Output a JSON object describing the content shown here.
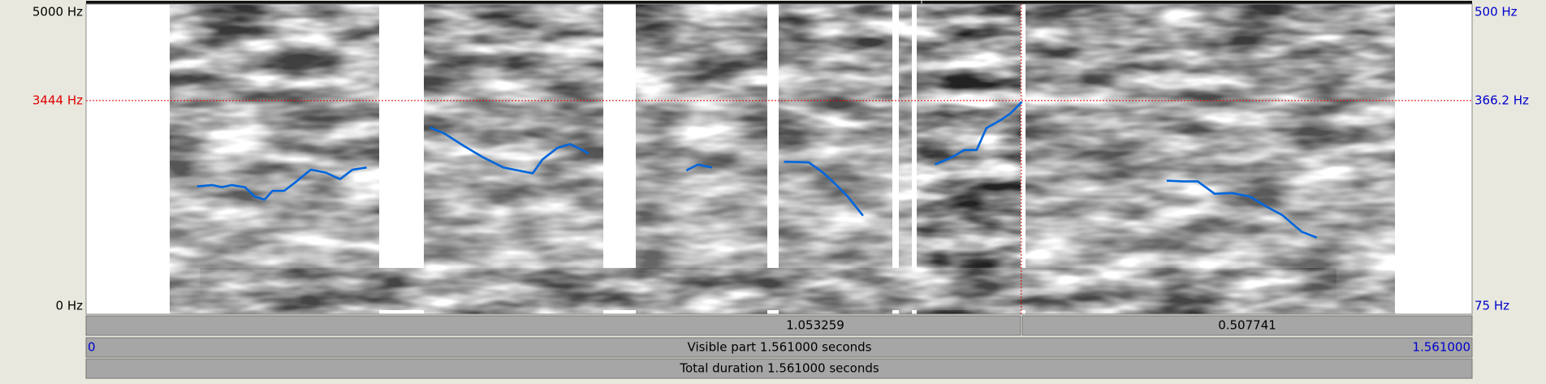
{
  "spectrogram": {
    "freq_axis": {
      "top": "5000 Hz",
      "cursor": "3444 Hz",
      "bottom": "0 Hz"
    },
    "pitch_axis": {
      "top": "500 Hz",
      "cursor": "366.2 Hz",
      "bottom": "75 Hz"
    },
    "pitch": [
      {
        "t": [
          0.125,
          0.142,
          0.153,
          0.164,
          0.179,
          0.19,
          0.201,
          0.21,
          0.223,
          0.236,
          0.253,
          0.27,
          0.286,
          0.3,
          0.316
        ],
        "hz": [
          250,
          252,
          249,
          252,
          249,
          236,
          232,
          244,
          244,
          256,
          273,
          269,
          260,
          273,
          276
        ]
      },
      {
        "t": [
          0.387,
          0.403,
          0.425,
          0.447,
          0.47,
          0.503,
          0.514,
          0.531,
          0.545,
          0.559,
          0.566
        ],
        "hz": [
          331,
          323,
          306,
          290,
          276,
          268,
          287,
          303,
          308,
          300,
          295
        ]
      },
      {
        "t": [
          0.676,
          0.689,
          0.705
        ],
        "hz": [
          272,
          280,
          276
        ]
      },
      {
        "t": [
          0.786,
          0.814,
          0.83,
          0.845,
          0.858,
          0.875
        ],
        "hz": [
          284,
          283,
          269,
          252,
          236,
          210
        ]
      },
      {
        "t": [
          0.956,
          0.975,
          0.989,
          1.003,
          1.014,
          1.03,
          1.041,
          1.054
        ],
        "hz": [
          280,
          290,
          300,
          300,
          330,
          341,
          350,
          366
        ]
      },
      {
        "t": [
          1.217,
          1.236,
          1.252,
          1.271,
          1.291,
          1.311,
          1.33,
          1.347,
          1.369,
          1.386
        ],
        "hz": [
          258,
          257,
          257,
          240,
          241,
          236,
          222,
          211,
          188,
          180
        ]
      }
    ]
  },
  "selection": {
    "left": "1.053259",
    "right": "0.507741"
  },
  "visible": {
    "start": "0",
    "label": "Visible part 1.561000 seconds",
    "end": "1.561000"
  },
  "total": {
    "label": "Total duration 1.561000 seconds"
  }
}
